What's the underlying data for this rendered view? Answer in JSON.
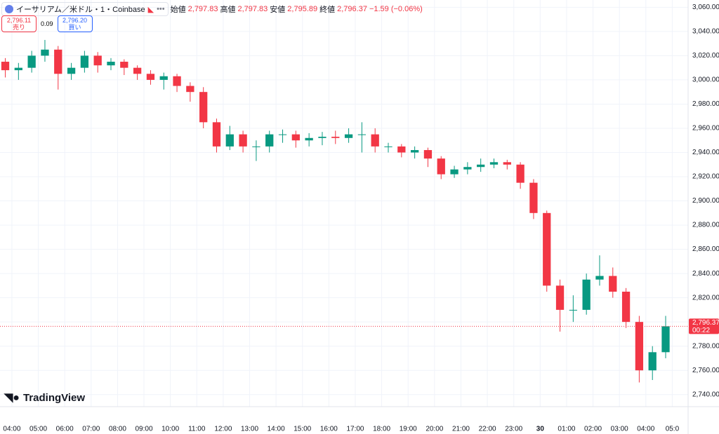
{
  "chart_data": {
    "type": "candlestick",
    "title": "イーサリアム／米ドル・1・Coinbase",
    "ohlc_labels": {
      "open": "始値",
      "high": "高値",
      "low": "安値",
      "close": "終値"
    },
    "ohlc_values": {
      "open": "2,797.83",
      "high": "2,797.83",
      "low": "2,795.89",
      "close": "2,796.37",
      "change": "−1.59 (−0.06%)"
    },
    "sell": {
      "price": "2,796.11",
      "label": "売り"
    },
    "spread": "0.09",
    "buy": {
      "price": "2,796.20",
      "label": "買い"
    },
    "last_price_label": "2,796.37",
    "countdown": "00:22",
    "logo": "TradingView",
    "up_color": "#089981",
    "down_color": "#f23645",
    "grid": true,
    "xlim": [
      -0.45,
      25.6
    ],
    "xticks": [
      {
        "value": 0,
        "label": "04:00"
      },
      {
        "value": 1,
        "label": "05:00"
      },
      {
        "value": 2,
        "label": "06:00"
      },
      {
        "value": 3,
        "label": "07:00"
      },
      {
        "value": 4,
        "label": "08:00"
      },
      {
        "value": 5,
        "label": "09:00"
      },
      {
        "value": 6,
        "label": "10:00"
      },
      {
        "value": 7,
        "label": "11:00"
      },
      {
        "value": 8,
        "label": "12:00"
      },
      {
        "value": 9,
        "label": "13:00"
      },
      {
        "value": 10,
        "label": "14:00"
      },
      {
        "value": 11,
        "label": "15:00"
      },
      {
        "value": 12,
        "label": "16:00"
      },
      {
        "value": 13,
        "label": "17:00"
      },
      {
        "value": 14,
        "label": "18:00"
      },
      {
        "value": 15,
        "label": "19:00"
      },
      {
        "value": 16,
        "label": "20:00"
      },
      {
        "value": 17,
        "label": "21:00"
      },
      {
        "value": 18,
        "label": "22:00"
      },
      {
        "value": 19,
        "label": "23:00"
      },
      {
        "value": 20,
        "label": "30"
      },
      {
        "value": 21,
        "label": "01:00"
      },
      {
        "value": 22,
        "label": "02:00"
      },
      {
        "value": 23,
        "label": "03:00"
      },
      {
        "value": 24,
        "label": "04:00"
      },
      {
        "value": 25,
        "label": "05:0"
      }
    ],
    "ylim": [
      2730,
      3066
    ],
    "yticks": [
      {
        "value": 2740,
        "label": "2,740.00"
      },
      {
        "value": 2760,
        "label": "2,760.00"
      },
      {
        "value": 2780,
        "label": "2,780.00"
      },
      {
        "value": 2800,
        "label": "2,800.00"
      },
      {
        "value": 2820,
        "label": "2,820.00"
      },
      {
        "value": 2840,
        "label": "2,840.00"
      },
      {
        "value": 2860,
        "label": "2,860.00"
      },
      {
        "value": 2880,
        "label": "2,880.00"
      },
      {
        "value": 2900,
        "label": "2,900.00"
      },
      {
        "value": 2920,
        "label": "2,920.00"
      },
      {
        "value": 2940,
        "label": "2,940.00"
      },
      {
        "value": 2960,
        "label": "2,960.00"
      },
      {
        "value": 2980,
        "label": "2,980.00"
      },
      {
        "value": 3000,
        "label": "3,000.00"
      },
      {
        "value": 3020,
        "label": "3,020.00"
      },
      {
        "value": 3040,
        "label": "3,040.00"
      },
      {
        "value": 3060,
        "label": "3,060.00"
      }
    ],
    "x": [
      -0.25,
      0.25,
      0.75,
      1.25,
      1.75,
      2.25,
      2.75,
      3.25,
      3.75,
      4.25,
      4.75,
      5.25,
      5.75,
      6.25,
      6.75,
      7.25,
      7.75,
      8.25,
      8.75,
      9.25,
      9.75,
      10.25,
      10.75,
      11.25,
      11.75,
      12.25,
      12.75,
      13.25,
      13.75,
      14.25,
      14.75,
      15.25,
      15.75,
      16.25,
      16.75,
      17.25,
      17.75,
      18.25,
      18.75,
      19.25,
      19.75,
      20.25,
      20.75,
      21.25,
      21.75,
      22.25,
      22.75,
      23.25,
      23.75,
      24.25,
      24.75
    ],
    "open": [
      3015,
      3008,
      3010,
      3020,
      3025,
      3005,
      3010,
      3020,
      3012,
      3015,
      3010,
      3005,
      3000,
      3003,
      2995,
      2990,
      2965,
      2945,
      2955,
      2945,
      2945,
      2955,
      2955,
      2950,
      2952,
      2953,
      2952,
      2955,
      2955,
      2945,
      2945,
      2940,
      2942,
      2935,
      2922,
      2926,
      2928,
      2930,
      2932,
      2930,
      2915,
      2890,
      2830,
      2810,
      2810,
      2835,
      2838,
      2825,
      2800,
      2760,
      2775
    ],
    "high": [
      3018,
      3014,
      3024,
      3033,
      3028,
      3014,
      3024,
      3023,
      3018,
      3017,
      3012,
      3008,
      3006,
      3005,
      2998,
      2994,
      2968,
      2962,
      2958,
      2950,
      2958,
      2959,
      2958,
      2956,
      2957,
      2958,
      2960,
      2965,
      2960,
      2948,
      2947,
      2945,
      2944,
      2937,
      2929,
      2932,
      2935,
      2935,
      2934,
      2932,
      2918,
      2892,
      2835,
      2822,
      2840,
      2855,
      2845,
      2828,
      2805,
      2780,
      2805
    ],
    "low": [
      3002,
      3000,
      3006,
      3015,
      2992,
      3000,
      3006,
      3006,
      3008,
      3004,
      3000,
      2996,
      2992,
      2990,
      2982,
      2960,
      2940,
      2942,
      2940,
      2933,
      2940,
      2948,
      2944,
      2945,
      2946,
      2947,
      2948,
      2940,
      2940,
      2940,
      2936,
      2935,
      2928,
      2918,
      2919,
      2922,
      2924,
      2927,
      2926,
      2910,
      2885,
      2825,
      2792,
      2800,
      2806,
      2830,
      2820,
      2795,
      2750,
      2752,
      2770
    ],
    "close": [
      3008,
      3010,
      3020,
      3025,
      3005,
      3010,
      3020,
      3012,
      3015,
      3010,
      3005,
      3000,
      3003,
      2995,
      2990,
      2965,
      2945,
      2955,
      2945,
      2945,
      2955,
      2955,
      2950,
      2952,
      2953,
      2952,
      2955,
      2955,
      2945,
      2945,
      2940,
      2942,
      2935,
      2922,
      2926,
      2928,
      2930,
      2932,
      2930,
      2915,
      2890,
      2830,
      2810,
      2810,
      2835,
      2838,
      2825,
      2800,
      2760,
      2775,
      2796.37
    ]
  }
}
